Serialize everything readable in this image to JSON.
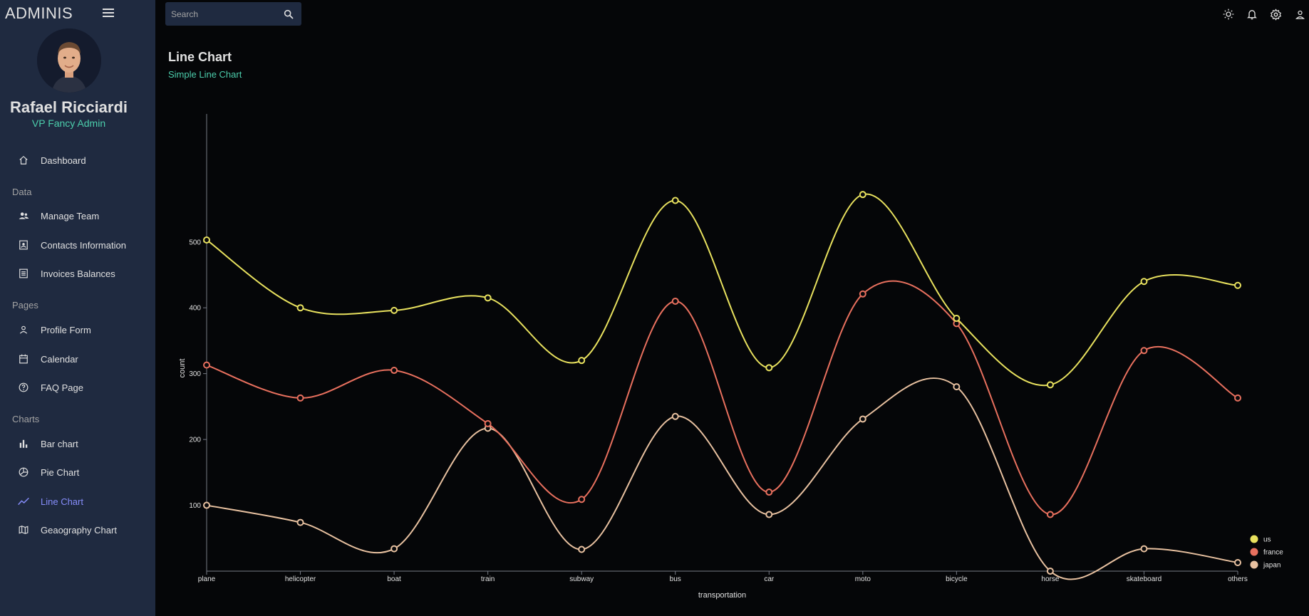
{
  "app": {
    "brand": "ADMINIS"
  },
  "user": {
    "name": "Rafael Ricciardi",
    "role": "VP Fancy Admin"
  },
  "sidebar": {
    "sections": [
      {
        "label": ""
      },
      {
        "label": "Data"
      },
      {
        "label": "Pages"
      },
      {
        "label": "Charts"
      }
    ],
    "items": [
      {
        "label": "Dashboard",
        "icon": "home-icon"
      },
      {
        "label": "Manage Team",
        "icon": "team-icon"
      },
      {
        "label": "Contacts Information",
        "icon": "contacts-icon"
      },
      {
        "label": "Invoices Balances",
        "icon": "invoice-icon"
      },
      {
        "label": "Profile Form",
        "icon": "person-icon"
      },
      {
        "label": "Calendar",
        "icon": "calendar-icon"
      },
      {
        "label": "FAQ Page",
        "icon": "help-icon"
      },
      {
        "label": "Bar chart",
        "icon": "bar-chart-icon"
      },
      {
        "label": "Pie Chart",
        "icon": "pie-chart-icon"
      },
      {
        "label": "Line Chart",
        "icon": "line-chart-icon",
        "active": true
      },
      {
        "label": "Geaography Chart",
        "icon": "map-icon"
      }
    ]
  },
  "search": {
    "placeholder": "Search"
  },
  "header": {
    "title": "Line Chart",
    "subtitle": "Simple Line Chart"
  },
  "colors": {
    "accent": "#4cceac",
    "active_nav": "#868dfb",
    "sidebar_bg": "#1f2a40",
    "us": "#e8e15e",
    "france": "#e8705e",
    "japan": "#e8c1a0"
  },
  "chart_data": {
    "type": "line",
    "categories": [
      "plane",
      "helicopter",
      "boat",
      "train",
      "subway",
      "bus",
      "car",
      "moto",
      "bicycle",
      "horse",
      "skateboard",
      "others"
    ],
    "series": [
      {
        "name": "us",
        "color": "#e8e15e",
        "values": [
          503,
          400,
          396,
          415,
          320,
          563,
          309,
          572,
          384,
          283,
          440,
          434
        ]
      },
      {
        "name": "france",
        "color": "#e8705e",
        "values": [
          313,
          263,
          305,
          224,
          109,
          410,
          120,
          421,
          376,
          86,
          335,
          263
        ]
      },
      {
        "name": "japan",
        "color": "#e8c1a0",
        "values": [
          100,
          74,
          34,
          217,
          33,
          235,
          86,
          231,
          280,
          0,
          34,
          13
        ]
      }
    ],
    "xlabel": "transportation",
    "ylabel": "count",
    "yticks": [
      100,
      200,
      300,
      400,
      500
    ],
    "ylim": [
      0,
      572
    ],
    "legend_position": "bottom-right"
  }
}
